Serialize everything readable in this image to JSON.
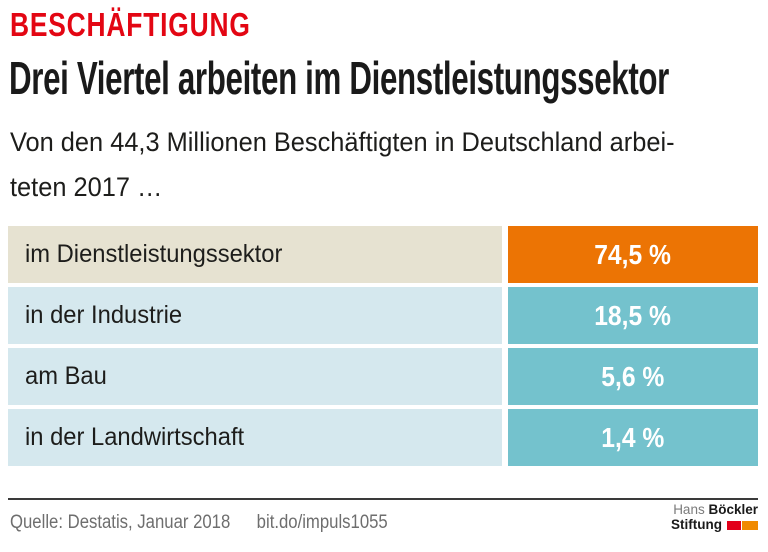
{
  "header": {
    "kicker": "BESCHÄFTIGUNG",
    "title": "Drei Viertel arbeiten im Dienstleistungssektor",
    "subtitle": "Von den 44,3 Millionen Beschäftigten in Deutschland arbei-\nteten 2017 …"
  },
  "chart_data": {
    "type": "bar",
    "title": "Drei Viertel arbeiten im Dienstleistungssektor",
    "subtitle": "Von den 44,3 Millionen Beschäftigten in Deutschland arbeiteten 2017 …",
    "unit": "%",
    "categories": [
      "im Dienstleistungssektor",
      "in der Industrie",
      "am Bau",
      "in der Landwirtschaft"
    ],
    "values": [
      74.5,
      18.5,
      5.6,
      1.4
    ],
    "value_labels": [
      "74,5 %",
      "18,5 %",
      "5,6 %",
      "1,4 %"
    ],
    "highlight_index": 0,
    "layout": "uniform-width value cells, legend off, no axes",
    "colors": {
      "highlight_bar": "#ec7404",
      "bar": "#74c2cd",
      "highlight_row_bg": "#e6e2d1",
      "row_bg": "#d5e8ee",
      "value_text": "#ffffff"
    }
  },
  "footer": {
    "source": "Quelle: Destatis, Januar 2018",
    "link": "bit.do/impuls1055"
  },
  "logo": {
    "line1_light": "Hans",
    "line1_bold": "Böckler",
    "line2_bold": "Stiftung",
    "colors": {
      "red": "#e2001a",
      "orange": "#f08a00"
    }
  },
  "theme": {
    "kicker_color": "#e30613",
    "title_color": "#1a1a1a",
    "text_color": "#1d1d1b",
    "footer_text_color": "#6e6e6e",
    "divider_color": "#3a3a3a",
    "background": "#ffffff"
  }
}
